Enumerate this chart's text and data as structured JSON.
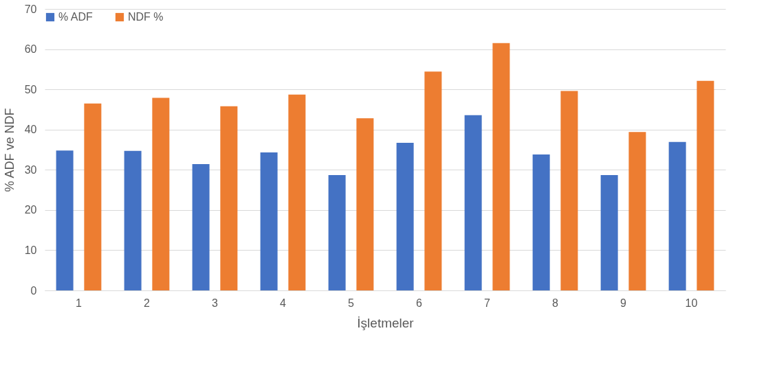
{
  "chart_data": {
    "type": "bar",
    "xlabel": "İşletmeler",
    "ylabel": "% ADF ve NDF",
    "categories": [
      "1",
      "2",
      "3",
      "4",
      "5",
      "6",
      "7",
      "8",
      "9",
      "10"
    ],
    "series": [
      {
        "name": "% ADF",
        "color": "#4472c4",
        "values": [
          34.8,
          34.7,
          31.4,
          34.3,
          28.7,
          36.7,
          43.6,
          33.8,
          28.7,
          36.9
        ]
      },
      {
        "name": "NDF %",
        "color": "#ed7d31",
        "values": [
          46.5,
          47.9,
          45.8,
          48.7,
          42.8,
          54.4,
          61.5,
          49.6,
          39.4,
          52.1
        ]
      }
    ],
    "ylim": [
      0,
      70
    ],
    "yticks": [
      0,
      10,
      20,
      30,
      40,
      50,
      60,
      70
    ],
    "grid": "y",
    "legend": "top"
  }
}
